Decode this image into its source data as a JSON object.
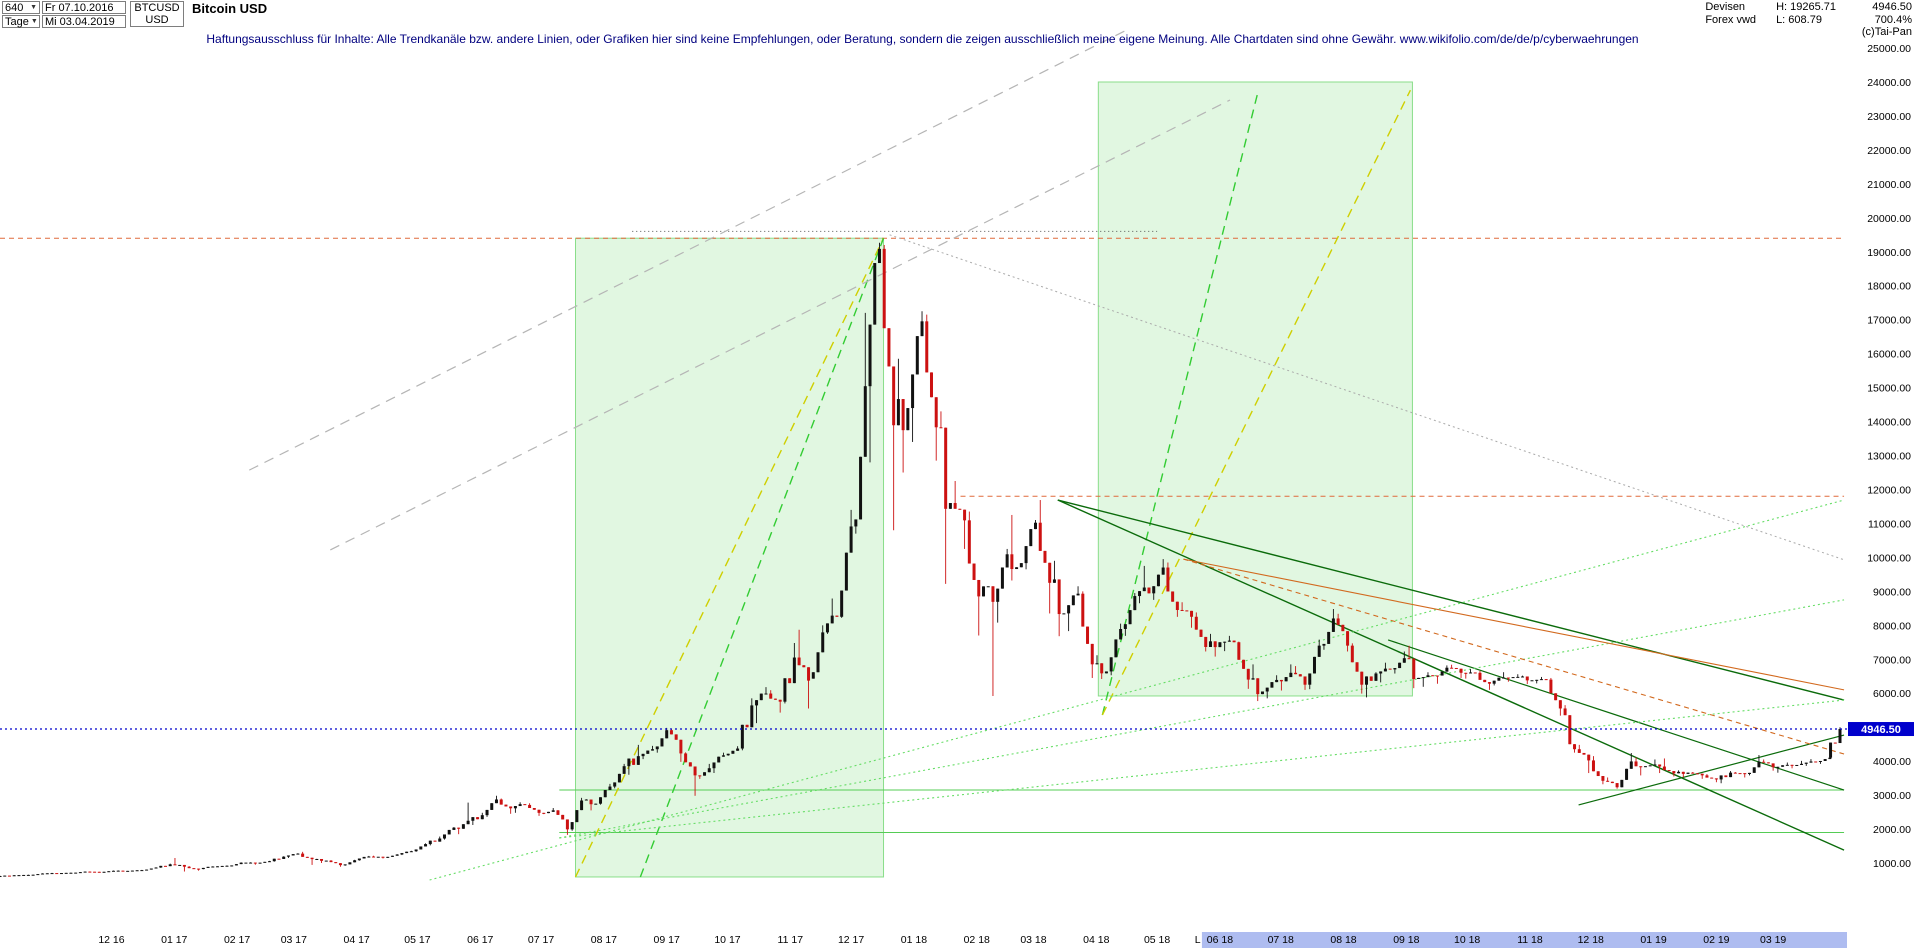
{
  "header": {
    "period_value": "640",
    "period_unit": "Tage",
    "date_from": "Fr 07.10.2016",
    "date_to": "Mi 03.04.2019",
    "symbol": "BTCUSD",
    "currency": "USD",
    "title": "Bitcoin USD",
    "category": "Devisen",
    "source": "Forex vwd",
    "period_high": "H: 19265.71",
    "period_low": "L: 608.79",
    "last_price": "4946.50",
    "performance": "700.4%",
    "copyright": "(c)Tai-Pan"
  },
  "icons": {
    "dropdown": "▼"
  },
  "disclaimer": "Haftungsausschluss für Inhalte: Alle Trendkanäle bzw. andere Linien, oder Grafiken hier sind keine Empfehlungen, oder Beratung, sondern die zeigen ausschließlich meine eigene Meinung. Alle Chartdaten sind ohne Gewähr.  www.wikifolio.com/de/de/p/cyberwaehrungen",
  "colors": {
    "candle_up": "#111111",
    "candle_down": "#cc1111",
    "x_highlight": "#aebcf0",
    "accent_blue": "#0000cc",
    "box_green": "#bdeebd",
    "disclaimer_blue": "#00007f"
  },
  "y_axis": {
    "ticks": [
      25000,
      24000,
      23000,
      22000,
      21000,
      20000,
      19000,
      18000,
      17000,
      16000,
      15000,
      14000,
      13000,
      12000,
      11000,
      10000,
      9000,
      8000,
      7000,
      6000,
      5000,
      4000,
      3000,
      2000,
      1000
    ]
  },
  "x_axis": {
    "labels": [
      "12 16",
      "01 17",
      "02 17",
      "03 17",
      "04 17",
      "05 17",
      "06 17",
      "07 17",
      "08 17",
      "09 17",
      "10 17",
      "11 17",
      "12 17",
      "01 18",
      "02 18",
      "03 18",
      "04 18",
      "05 18",
      "06 18",
      "07 18",
      "08 18",
      "09 18",
      "10 18",
      "11 18",
      "12 18",
      "01 19",
      "02 19",
      "03 19"
    ],
    "highlight_start": "06 18",
    "marker": {
      "text": "L",
      "date": "2018-05-21"
    }
  },
  "price_marker": {
    "price": 4946.5,
    "label": "4946.50",
    "color": "#0000cc"
  },
  "chart_data": {
    "type": "candlestick",
    "title": "Bitcoin USD",
    "symbol": "BTCUSD",
    "x_range": [
      "2016-10-07",
      "2019-04-03"
    ],
    "y_range": [
      0,
      25060
    ],
    "grid": "off",
    "first_open": 610,
    "open_rule": "previous_close",
    "weekly_ohlc": {
      "columns": [
        "week_end",
        "high",
        "low",
        "close"
      ],
      "rows": [
        [
          "2016-10-07",
          625,
          605,
          618
        ],
        [
          "2016-10-14",
          645,
          612,
          640
        ],
        [
          "2016-10-21",
          658,
          630,
          651
        ],
        [
          "2016-10-28",
          700,
          645,
          692
        ],
        [
          "2016-11-04",
          710,
          678,
          702
        ],
        [
          "2016-11-11",
          722,
          698,
          714
        ],
        [
          "2016-11-18",
          752,
          710,
          748
        ],
        [
          "2016-11-25",
          755,
          725,
          733
        ],
        [
          "2016-12-02",
          780,
          730,
          772
        ],
        [
          "2016-12-09",
          785,
          760,
          770
        ],
        [
          "2016-12-16",
          798,
          768,
          792
        ],
        [
          "2016-12-23",
          875,
          780,
          868
        ],
        [
          "2016-12-30",
          982,
          858,
          962
        ],
        [
          "2017-01-06",
          1150,
          750,
          892
        ],
        [
          "2017-01-13",
          910,
          775,
          822
        ],
        [
          "2017-01-20",
          905,
          818,
          898
        ],
        [
          "2017-01-27",
          930,
          885,
          921
        ],
        [
          "2017-02-03",
          1020,
          900,
          1012
        ],
        [
          "2017-02-10",
          1025,
          950,
          998
        ],
        [
          "2017-02-17",
          1062,
          985,
          1054
        ],
        [
          "2017-02-24",
          1200,
          1040,
          1188
        ],
        [
          "2017-03-03",
          1290,
          1150,
          1278
        ],
        [
          "2017-03-10",
          1330,
          945,
          1116
        ],
        [
          "2017-03-17",
          1125,
          1000,
          1072
        ],
        [
          "2017-03-24",
          1085,
          890,
          938
        ],
        [
          "2017-03-31",
          1095,
          920,
          1082
        ],
        [
          "2017-04-07",
          1210,
          1070,
          1192
        ],
        [
          "2017-04-14",
          1215,
          1135,
          1178
        ],
        [
          "2017-04-21",
          1262,
          1150,
          1252
        ],
        [
          "2017-04-28",
          1360,
          1235,
          1348
        ],
        [
          "2017-05-05",
          1580,
          1330,
          1558
        ],
        [
          "2017-05-12",
          1780,
          1520,
          1722
        ],
        [
          "2017-05-19",
          2060,
          1690,
          2042
        ],
        [
          "2017-05-26",
          2780,
          1850,
          2245
        ],
        [
          "2017-06-02",
          2480,
          2120,
          2410
        ],
        [
          "2017-06-09",
          2980,
          2360,
          2872
        ],
        [
          "2017-06-16",
          2900,
          2450,
          2612
        ],
        [
          "2017-06-23",
          2790,
          2480,
          2712
        ],
        [
          "2017-06-30",
          2760,
          2390,
          2478
        ],
        [
          "2017-07-07",
          2620,
          2440,
          2552
        ],
        [
          "2017-07-14",
          2560,
          1830,
          1992
        ],
        [
          "2017-07-21",
          2920,
          1950,
          2842
        ],
        [
          "2017-07-28",
          2880,
          2550,
          2748
        ],
        [
          "2017-08-04",
          3330,
          2720,
          3252
        ],
        [
          "2017-08-11",
          3920,
          3200,
          3852
        ],
        [
          "2017-08-18",
          4480,
          3600,
          4148
        ],
        [
          "2017-08-25",
          4450,
          4060,
          4352
        ],
        [
          "2017-09-01",
          4980,
          4250,
          4912
        ],
        [
          "2017-09-08",
          4950,
          3980,
          4228
        ],
        [
          "2017-09-15",
          4260,
          2980,
          3582
        ],
        [
          "2017-09-22",
          3920,
          3480,
          3792
        ],
        [
          "2017-09-29",
          4250,
          3650,
          4172
        ],
        [
          "2017-10-06",
          4440,
          4160,
          4372
        ],
        [
          "2017-10-13",
          5850,
          4320,
          5642
        ],
        [
          "2017-10-20",
          6180,
          5120,
          5992
        ],
        [
          "2017-10-27",
          6090,
          5430,
          5752
        ],
        [
          "2017-11-03",
          7480,
          5700,
          7052
        ],
        [
          "2017-11-10",
          7870,
          5550,
          6372
        ],
        [
          "2017-11-17",
          8000,
          6430,
          7792
        ],
        [
          "2017-11-24",
          8790,
          7750,
          8252
        ],
        [
          "2017-12-01",
          11400,
          8220,
          10912
        ],
        [
          "2017-12-08",
          17200,
          10700,
          15042
        ],
        [
          "2017-12-15",
          19265,
          12800,
          19086
        ],
        [
          "2017-12-22",
          19200,
          10800,
          13892
        ],
        [
          "2017-12-29",
          15850,
          12500,
          14398
        ],
        [
          "2018-01-05",
          17250,
          13400,
          16952
        ],
        [
          "2018-01-12",
          17150,
          12850,
          13832
        ],
        [
          "2018-01-19",
          14300,
          9220,
          11602
        ],
        [
          "2018-01-26",
          12250,
          10250,
          11092
        ],
        [
          "2018-02-02",
          11350,
          7700,
          8852
        ],
        [
          "2018-02-09",
          9150,
          5920,
          8692
        ],
        [
          "2018-02-16",
          10250,
          8080,
          10092
        ],
        [
          "2018-02-23",
          11250,
          9320,
          9832
        ],
        [
          "2018-03-02",
          11100,
          9650,
          11022
        ],
        [
          "2018-03-09",
          11690,
          8350,
          9252
        ],
        [
          "2018-03-16",
          9900,
          7680,
          8352
        ],
        [
          "2018-03-23",
          9150,
          7830,
          8932
        ],
        [
          "2018-03-30",
          9000,
          6450,
          6852
        ],
        [
          "2018-04-06",
          7120,
          6420,
          6642
        ],
        [
          "2018-04-13",
          8050,
          6530,
          7892
        ],
        [
          "2018-04-20",
          8950,
          7690,
          8862
        ],
        [
          "2018-04-27",
          9750,
          8650,
          8942
        ],
        [
          "2018-05-04",
          9950,
          8750,
          9702
        ],
        [
          "2018-05-11",
          9850,
          8250,
          8452
        ],
        [
          "2018-05-18",
          8680,
          7930,
          8252
        ],
        [
          "2018-05-25",
          8380,
          7230,
          7362
        ],
        [
          "2018-06-01",
          7750,
          7080,
          7502
        ],
        [
          "2018-06-08",
          7690,
          7240,
          7502
        ],
        [
          "2018-06-15",
          7520,
          6130,
          6402
        ],
        [
          "2018-06-22",
          6850,
          5770,
          6052
        ],
        [
          "2018-06-29",
          6530,
          5850,
          6392
        ],
        [
          "2018-07-06",
          6850,
          6080,
          6602
        ],
        [
          "2018-07-13",
          6800,
          6100,
          6252
        ],
        [
          "2018-07-20",
          7580,
          6120,
          7402
        ],
        [
          "2018-07-27",
          8480,
          7280,
          8202
        ],
        [
          "2018-08-03",
          8340,
          7230,
          7402
        ],
        [
          "2018-08-10",
          7470,
          5990,
          6252
        ],
        [
          "2018-08-17",
          6620,
          5880,
          6582
        ],
        [
          "2018-08-24",
          6900,
          6320,
          6702
        ],
        [
          "2018-08-31",
          7230,
          6580,
          7032
        ],
        [
          "2018-09-07",
          7400,
          6150,
          6452
        ],
        [
          "2018-09-14",
          6620,
          6190,
          6522
        ],
        [
          "2018-09-21",
          6820,
          6280,
          6752
        ],
        [
          "2018-09-28",
          6840,
          6450,
          6602
        ],
        [
          "2018-10-05",
          6710,
          6430,
          6602
        ],
        [
          "2018-10-12",
          6660,
          6100,
          6282
        ],
        [
          "2018-10-19",
          6620,
          6230,
          6462
        ],
        [
          "2018-10-26",
          6560,
          6340,
          6482
        ],
        [
          "2018-11-02",
          6520,
          6270,
          6382
        ],
        [
          "2018-11-09",
          6480,
          6290,
          6402
        ],
        [
          "2018-11-16",
          6450,
          5340,
          5552
        ],
        [
          "2018-11-23",
          5650,
          4250,
          4352
        ],
        [
          "2018-11-30",
          4480,
          3650,
          4022
        ],
        [
          "2018-12-07",
          4150,
          3320,
          3422
        ],
        [
          "2018-12-14",
          3520,
          3190,
          3232
        ],
        [
          "2018-12-21",
          4240,
          3230,
          3992
        ],
        [
          "2018-12-28",
          4110,
          3580,
          3852
        ],
        [
          "2019-01-04",
          4050,
          3650,
          3842
        ],
        [
          "2019-01-11",
          4080,
          3550,
          3642
        ],
        [
          "2019-01-18",
          3730,
          3520,
          3662
        ],
        [
          "2019-01-25",
          3680,
          3480,
          3582
        ],
        [
          "2019-02-01",
          3620,
          3380,
          3462
        ],
        [
          "2019-02-08",
          3710,
          3350,
          3662
        ],
        [
          "2019-02-15",
          3680,
          3520,
          3622
        ],
        [
          "2019-02-22",
          4180,
          3580,
          3982
        ],
        [
          "2019-03-01",
          4050,
          3720,
          3822
        ],
        [
          "2019-03-08",
          3960,
          3660,
          3892
        ],
        [
          "2019-03-15",
          4010,
          3790,
          3922
        ],
        [
          "2019-03-22",
          4060,
          3860,
          3982
        ],
        [
          "2019-03-29",
          4150,
          3920,
          4102
        ],
        [
          "2019-04-03",
          5000,
          4090,
          4946.5
        ]
      ]
    }
  },
  "overlays": {
    "boxes": [
      {
        "name": "rally-2017-box",
        "d1": "2017-07-18",
        "d2": "2017-12-17",
        "p1": 19400,
        "p2": 590,
        "fill": "#bdeebd",
        "opacity": 0.45,
        "stroke": "#8ade8a"
      },
      {
        "name": "projection-2018-box",
        "d1": "2018-04-02",
        "d2": "2018-09-04",
        "p1": 24000,
        "p2": 5920,
        "fill": "#bdeebd",
        "opacity": 0.45,
        "stroke": "#8ade8a"
      }
    ],
    "lines": [
      {
        "name": "ath-resistance-line",
        "d1": "2016-10-07",
        "p1": 19400,
        "d2": "2019-04-05",
        "p2": 19400,
        "color": "#e06a3c",
        "dash": "5 4",
        "w": 1
      },
      {
        "name": "peak-level-dotted-line",
        "d1": "2017-08-15",
        "p1": 19600,
        "d2": "2018-05-01",
        "p2": 19600,
        "color": "#555555",
        "dash": "1 3",
        "w": 1
      },
      {
        "name": "resistance-11800-line",
        "d1": "2018-01-24",
        "p1": 11800,
        "d2": "2019-04-05",
        "p2": 11800,
        "color": "#e06a3c",
        "dash": "5 4",
        "w": 1
      },
      {
        "name": "support-3150-line",
        "d1": "2017-07-10",
        "p1": 3150,
        "d2": "2019-04-05",
        "p2": 3150,
        "color": "#55cc55",
        "dash": "",
        "w": 1
      },
      {
        "name": "support-1900-line",
        "d1": "2017-07-10",
        "p1": 1900,
        "d2": "2019-04-05",
        "p2": 1900,
        "color": "#55cc55",
        "dash": "",
        "w": 1
      },
      {
        "name": "rally-2017-yellow-trend",
        "d1": "2017-07-18",
        "p1": 590,
        "d2": "2017-12-17",
        "p2": 19400,
        "color": "#cfcf00",
        "dash": "9 6",
        "w": 1.4
      },
      {
        "name": "rally-2017-green-trend",
        "d1": "2017-08-19",
        "p1": 590,
        "d2": "2017-12-17",
        "p2": 19400,
        "color": "#33cc33",
        "dash": "9 6",
        "w": 1.4
      },
      {
        "name": "projection-2018-green-trend",
        "d1": "2018-04-04",
        "p1": 5360,
        "d2": "2018-06-20",
        "p2": 23760,
        "color": "#33cc33",
        "dash": "9 6",
        "w": 1.4
      },
      {
        "name": "projection-2018-yellow-trend",
        "d1": "2018-04-04",
        "p1": 5360,
        "d2": "2018-09-03",
        "p2": 23760,
        "color": "#cfcf00",
        "dash": "9 6",
        "w": 1.4
      },
      {
        "name": "gray-channel-upper",
        "d1": "2017-02-07",
        "p1": 12570,
        "d2": "2018-04-26",
        "p2": 25830,
        "color": "#b5b5b5",
        "dash": "10 7",
        "w": 1.2
      },
      {
        "name": "gray-channel-lower",
        "d1": "2017-03-19",
        "p1": 10220,
        "d2": "2018-06-06",
        "p2": 23470,
        "color": "#b5b5b5",
        "dash": "10 7",
        "w": 1.2
      },
      {
        "name": "gray-fan-dotted",
        "d1": "2017-12-20",
        "p1": 19500,
        "d2": "2019-04-05",
        "p2": 9930,
        "color": "#aaaaaa",
        "dash": "2 3",
        "w": 1
      },
      {
        "name": "downtrend-2018-upper",
        "d1": "2018-03-13",
        "p1": 11690,
        "d2": "2019-04-05",
        "p2": 5800,
        "color": "#0b6b0b",
        "dash": "",
        "w": 1.4
      },
      {
        "name": "downtrend-2018-steep",
        "d1": "2018-03-13",
        "p1": 11690,
        "d2": "2019-04-05",
        "p2": 1380,
        "color": "#0b6b0b",
        "dash": "",
        "w": 1.4
      },
      {
        "name": "downtrend-2018-inner",
        "d1": "2018-08-23",
        "p1": 7570,
        "d2": "2019-04-05",
        "p2": 3150,
        "color": "#0b6b0b",
        "dash": "",
        "w": 1.2
      },
      {
        "name": "recovery-2019-trend",
        "d1": "2018-11-25",
        "p1": 2710,
        "d2": "2019-04-05",
        "p2": 4770,
        "color": "#0b6b0b",
        "dash": "",
        "w": 1.2
      },
      {
        "name": "longterm-support-fan-1",
        "d1": "2017-05-07",
        "p1": 500,
        "d2": "2019-04-05",
        "p2": 11690,
        "color": "#66dd66",
        "dash": "2 3",
        "w": 1.1
      },
      {
        "name": "longterm-support-fan-2",
        "d1": "2017-07-10",
        "p1": 1740,
        "d2": "2019-04-05",
        "p2": 8750,
        "color": "#66dd66",
        "dash": "2 3",
        "w": 1.1
      },
      {
        "name": "longterm-support-fan-3",
        "d1": "2017-07-10",
        "p1": 1740,
        "d2": "2019-04-05",
        "p2": 5800,
        "color": "#66dd66",
        "dash": "2 3",
        "w": 1.1
      },
      {
        "name": "orange-downtrend-solid",
        "d1": "2018-05-14",
        "p1": 9950,
        "d2": "2019-04-05",
        "p2": 6100,
        "color": "#d2691e",
        "dash": "",
        "w": 1.1
      },
      {
        "name": "orange-downtrend-dashed",
        "d1": "2018-05-14",
        "p1": 9950,
        "d2": "2019-04-05",
        "p2": 4210,
        "color": "#d2691e",
        "dash": "5 4",
        "w": 1.1
      }
    ]
  }
}
